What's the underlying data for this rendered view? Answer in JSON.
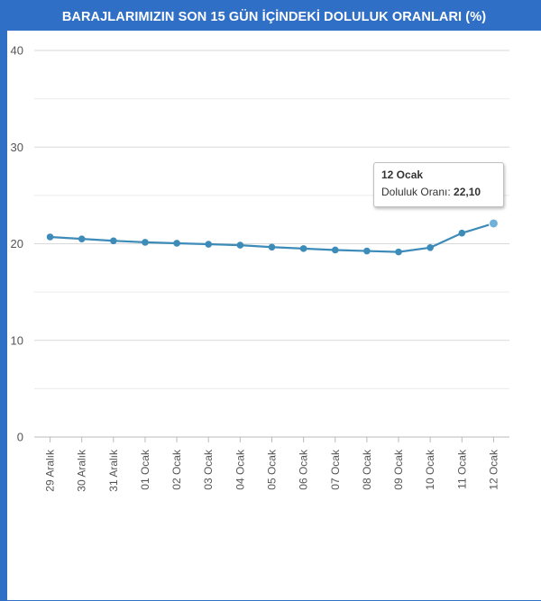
{
  "chart_data": {
    "type": "line",
    "title": "BARAJLARIMIZIN SON 15 GÜN İÇİNDEKİ DOLULUK ORANLARI (%)",
    "categories": [
      "29 Aralık",
      "30 Aralık",
      "31 Aralık",
      "01 Ocak",
      "02 Ocak",
      "03 Ocak",
      "04 Ocak",
      "05 Ocak",
      "06 Ocak",
      "07 Ocak",
      "08 Ocak",
      "09 Ocak",
      "10 Ocak",
      "11 Ocak",
      "12 Ocak"
    ],
    "series": [
      {
        "name": "Doluluk Oranı",
        "values": [
          20.7,
          20.5,
          20.3,
          20.15,
          20.05,
          19.95,
          19.85,
          19.65,
          19.5,
          19.35,
          19.25,
          19.15,
          19.6,
          21.1,
          22.1
        ]
      }
    ],
    "yticks": [
      0,
      10,
      20,
      30,
      40
    ],
    "ylim": [
      0,
      40
    ],
    "xlabel": "",
    "ylabel": "",
    "line_color": "#3d8bb8",
    "grid_color": "#d9d9d9",
    "tooltip": {
      "title": "12 Ocak",
      "label": "Doluluk Oranı:",
      "value": "22,10"
    }
  }
}
